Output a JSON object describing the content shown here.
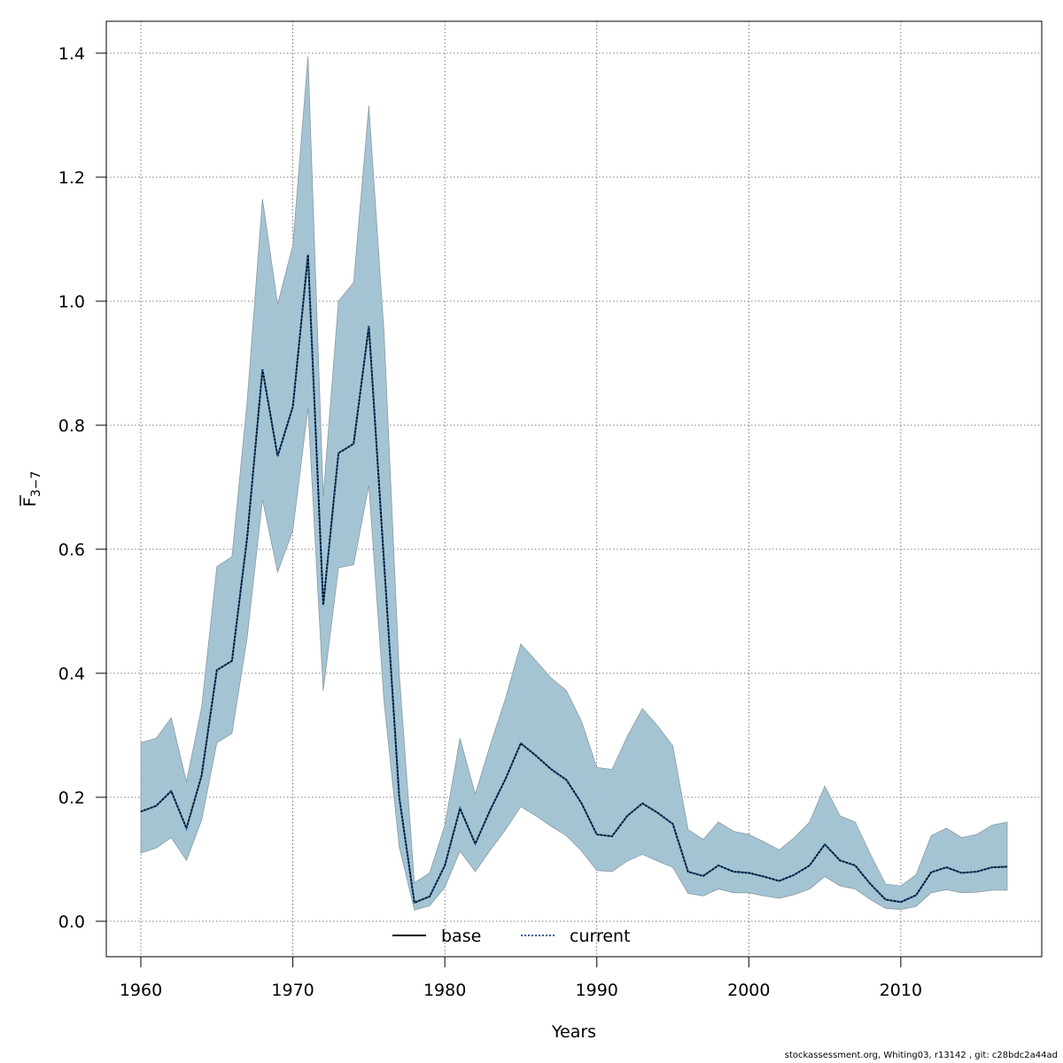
{
  "footer_text": "stockassessment.org, Whiting03, r13142 , git: c28bdc2a44ad",
  "colors": {
    "band": "#a4c4d4",
    "band_edge": "#8a9aa4",
    "current_line": "#1a5a9a",
    "base_line": "#000000",
    "grid": "#555555"
  },
  "chart_data": {
    "type": "line",
    "xlabel": "Years",
    "ylabel": "F",
    "ylabel_bar": true,
    "ylabel_sub": "3−7",
    "xlim": [
      1960,
      2017
    ],
    "ylim": [
      0,
      1.4
    ],
    "xticks": [
      1960,
      1970,
      1980,
      1990,
      2000,
      2010
    ],
    "xtick_labels": [
      "1960",
      "1970",
      "1980",
      "1990",
      "2000",
      "2010"
    ],
    "yticks": [
      0.0,
      0.2,
      0.4,
      0.6,
      0.8,
      1.0,
      1.2,
      1.4
    ],
    "ytick_labels": [
      "0.0",
      "0.2",
      "0.4",
      "0.6",
      "0.8",
      "1.0",
      "1.2",
      "1.4"
    ],
    "grid": true,
    "legend_position": "bottom-center",
    "legend": [
      {
        "label": "base",
        "style": "solid"
      },
      {
        "label": "current",
        "style": "dotted"
      }
    ],
    "x": [
      1960,
      1961,
      1962,
      1963,
      1964,
      1965,
      1966,
      1967,
      1968,
      1969,
      1970,
      1971,
      1972,
      1973,
      1974,
      1975,
      1976,
      1977,
      1978,
      1979,
      1980,
      1981,
      1982,
      1983,
      1984,
      1985,
      1986,
      1987,
      1988,
      1989,
      1990,
      1991,
      1992,
      1993,
      1994,
      1995,
      1996,
      1997,
      1998,
      1999,
      2000,
      2001,
      2002,
      2003,
      2004,
      2005,
      2006,
      2007,
      2008,
      2009,
      2010,
      2011,
      2012,
      2013,
      2014,
      2015,
      2016,
      2017
    ],
    "series": [
      {
        "name": "base",
        "values": [
          0.177,
          0.186,
          0.21,
          0.15,
          0.235,
          0.405,
          0.42,
          0.62,
          0.89,
          0.75,
          0.83,
          1.075,
          0.51,
          0.755,
          0.77,
          0.96,
          0.58,
          0.2,
          0.03,
          0.04,
          0.09,
          0.182,
          0.125,
          0.18,
          0.23,
          0.287,
          0.267,
          0.245,
          0.228,
          0.19,
          0.14,
          0.137,
          0.17,
          0.19,
          0.175,
          0.157,
          0.08,
          0.073,
          0.09,
          0.08,
          0.078,
          0.072,
          0.065,
          0.075,
          0.09,
          0.124,
          0.098,
          0.09,
          0.06,
          0.035,
          0.031,
          0.042,
          0.079,
          0.087,
          0.078,
          0.08,
          0.087,
          0.088
        ]
      },
      {
        "name": "current",
        "values": [
          0.177,
          0.186,
          0.21,
          0.15,
          0.235,
          0.405,
          0.42,
          0.62,
          0.89,
          0.75,
          0.83,
          1.075,
          0.51,
          0.755,
          0.77,
          0.96,
          0.58,
          0.2,
          0.03,
          0.04,
          0.09,
          0.182,
          0.125,
          0.18,
          0.23,
          0.287,
          0.267,
          0.245,
          0.228,
          0.19,
          0.14,
          0.137,
          0.17,
          0.19,
          0.175,
          0.157,
          0.08,
          0.073,
          0.09,
          0.08,
          0.078,
          0.072,
          0.065,
          0.075,
          0.09,
          0.124,
          0.098,
          0.09,
          0.06,
          0.035,
          0.031,
          0.042,
          0.079,
          0.087,
          0.078,
          0.08,
          0.087,
          0.088
        ]
      }
    ],
    "band_upper": [
      0.288,
      0.295,
      0.328,
      0.225,
      0.345,
      0.572,
      0.588,
      0.84,
      1.165,
      0.995,
      1.09,
      1.395,
      0.685,
      1.0,
      1.03,
      1.315,
      0.95,
      0.4,
      0.062,
      0.078,
      0.155,
      0.295,
      0.205,
      0.285,
      0.36,
      0.447,
      0.42,
      0.392,
      0.372,
      0.322,
      0.248,
      0.245,
      0.298,
      0.343,
      0.315,
      0.283,
      0.148,
      0.132,
      0.16,
      0.145,
      0.14,
      0.128,
      0.115,
      0.135,
      0.16,
      0.218,
      0.17,
      0.16,
      0.108,
      0.06,
      0.057,
      0.075,
      0.138,
      0.15,
      0.135,
      0.14,
      0.155,
      0.16
    ],
    "band_lower": [
      0.11,
      0.118,
      0.135,
      0.098,
      0.163,
      0.288,
      0.303,
      0.458,
      0.68,
      0.563,
      0.63,
      0.828,
      0.372,
      0.57,
      0.575,
      0.703,
      0.355,
      0.12,
      0.018,
      0.025,
      0.055,
      0.113,
      0.08,
      0.115,
      0.148,
      0.185,
      0.17,
      0.153,
      0.138,
      0.113,
      0.082,
      0.08,
      0.097,
      0.108,
      0.097,
      0.087,
      0.045,
      0.041,
      0.052,
      0.046,
      0.046,
      0.041,
      0.037,
      0.043,
      0.052,
      0.072,
      0.057,
      0.052,
      0.035,
      0.021,
      0.019,
      0.024,
      0.046,
      0.051,
      0.046,
      0.047,
      0.05,
      0.05
    ]
  }
}
